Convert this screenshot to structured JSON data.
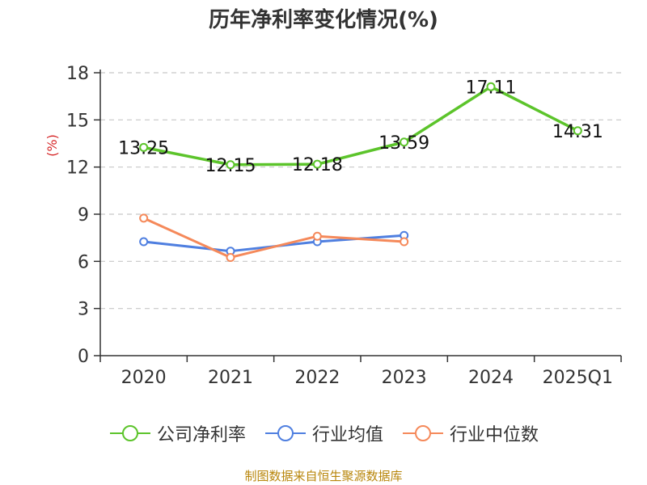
{
  "chart_data": {
    "type": "line",
    "title": "历年净利率变化情况(%)",
    "ylabel": "(%)",
    "xlabel": "",
    "categories": [
      "2020",
      "2021",
      "2022",
      "2023",
      "2024",
      "2025Q1"
    ],
    "ylim": [
      0,
      18
    ],
    "yticks": [
      0,
      3,
      6,
      9,
      12,
      15,
      18
    ],
    "grid": true,
    "legend_position": "bottom",
    "series": [
      {
        "name": "公司净利率",
        "color": "#5cc42b",
        "values": [
          13.25,
          12.15,
          12.18,
          13.59,
          17.11,
          14.31
        ],
        "labels": [
          "13.25",
          "12.15",
          "12.18",
          "13.59",
          "17.11",
          "14.31"
        ]
      },
      {
        "name": "行业均值",
        "color": "#4f7fe0",
        "values": [
          7.25,
          6.65,
          7.25,
          7.65,
          null,
          null
        ]
      },
      {
        "name": "行业中位数",
        "color": "#f5895a",
        "values": [
          8.75,
          6.25,
          7.6,
          7.25,
          null,
          null
        ]
      }
    ]
  },
  "footer": {
    "source": "制图数据来自恒生聚源数据库"
  }
}
